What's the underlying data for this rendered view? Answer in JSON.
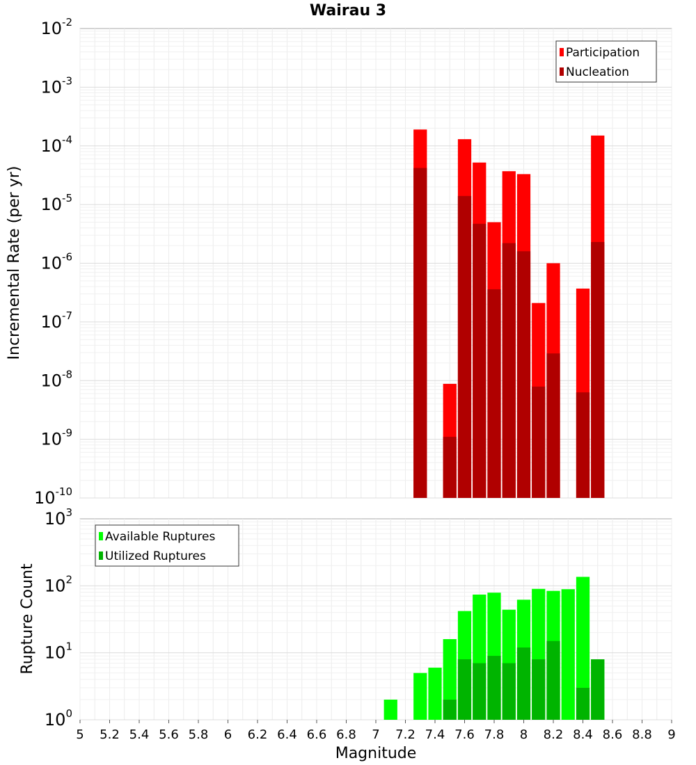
{
  "title": "Wairau 3",
  "chart_data": [
    {
      "type": "bar",
      "panel": "top",
      "ylabel": "Incremental Rate (per yr)",
      "yscale": "log",
      "ylim_exp": [
        -10,
        -2
      ],
      "legend_placement": "top-right",
      "bin_width": 0.1,
      "x": [
        7.3,
        7.5,
        7.6,
        7.7,
        7.8,
        7.9,
        8.0,
        8.1,
        8.2,
        8.4,
        8.5
      ],
      "series": [
        {
          "name": "Participation",
          "color": "#ff0000",
          "values": [
            0.00019,
            8.8e-09,
            0.00013,
            5.2e-05,
            5e-06,
            3.7e-05,
            3.3e-05,
            2.1e-07,
            1e-06,
            3.7e-07,
            0.00015
          ]
        },
        {
          "name": "Nucleation",
          "color": "#b00000",
          "values": [
            4.2e-05,
            1.1e-09,
            1.4e-05,
            4.7e-06,
            3.6e-07,
            2.2e-06,
            1.6e-06,
            7.9e-09,
            2.9e-08,
            6.3e-09,
            2.3e-06
          ]
        }
      ]
    },
    {
      "type": "bar",
      "panel": "bottom",
      "ylabel": "Rupture Count",
      "yscale": "log",
      "ylim_exp": [
        0,
        3
      ],
      "legend_placement": "top-left",
      "bin_width": 0.1,
      "x": [
        6.6,
        7.0,
        7.1,
        7.2,
        7.3,
        7.4,
        7.5,
        7.6,
        7.7,
        7.8,
        7.9,
        8.0,
        8.1,
        8.2,
        8.3,
        8.4,
        8.5
      ],
      "series": [
        {
          "name": "Available Ruptures",
          "color": "#00ff00",
          "values": [
            1,
            1,
            2,
            1,
            5,
            6,
            16,
            42,
            74,
            79,
            44,
            62,
            90,
            84,
            89,
            136,
            8
          ]
        },
        {
          "name": "Utilized Ruptures",
          "color": "#00b400",
          "values": [
            0,
            0,
            0,
            0,
            1,
            0,
            2,
            8,
            7,
            9,
            7,
            12,
            8,
            15,
            1,
            3,
            8
          ]
        }
      ]
    }
  ],
  "xlabel": "Magnitude",
  "x_ticks": [
    "5",
    "5.2",
    "5.4",
    "5.6",
    "5.8",
    "6",
    "6.2",
    "6.4",
    "6.6",
    "6.8",
    "7",
    "7.2",
    "7.4",
    "7.6",
    "7.8",
    "8",
    "8.2",
    "8.4",
    "8.6",
    "8.8",
    "9"
  ],
  "xlim": [
    5,
    9
  ],
  "grid": true
}
